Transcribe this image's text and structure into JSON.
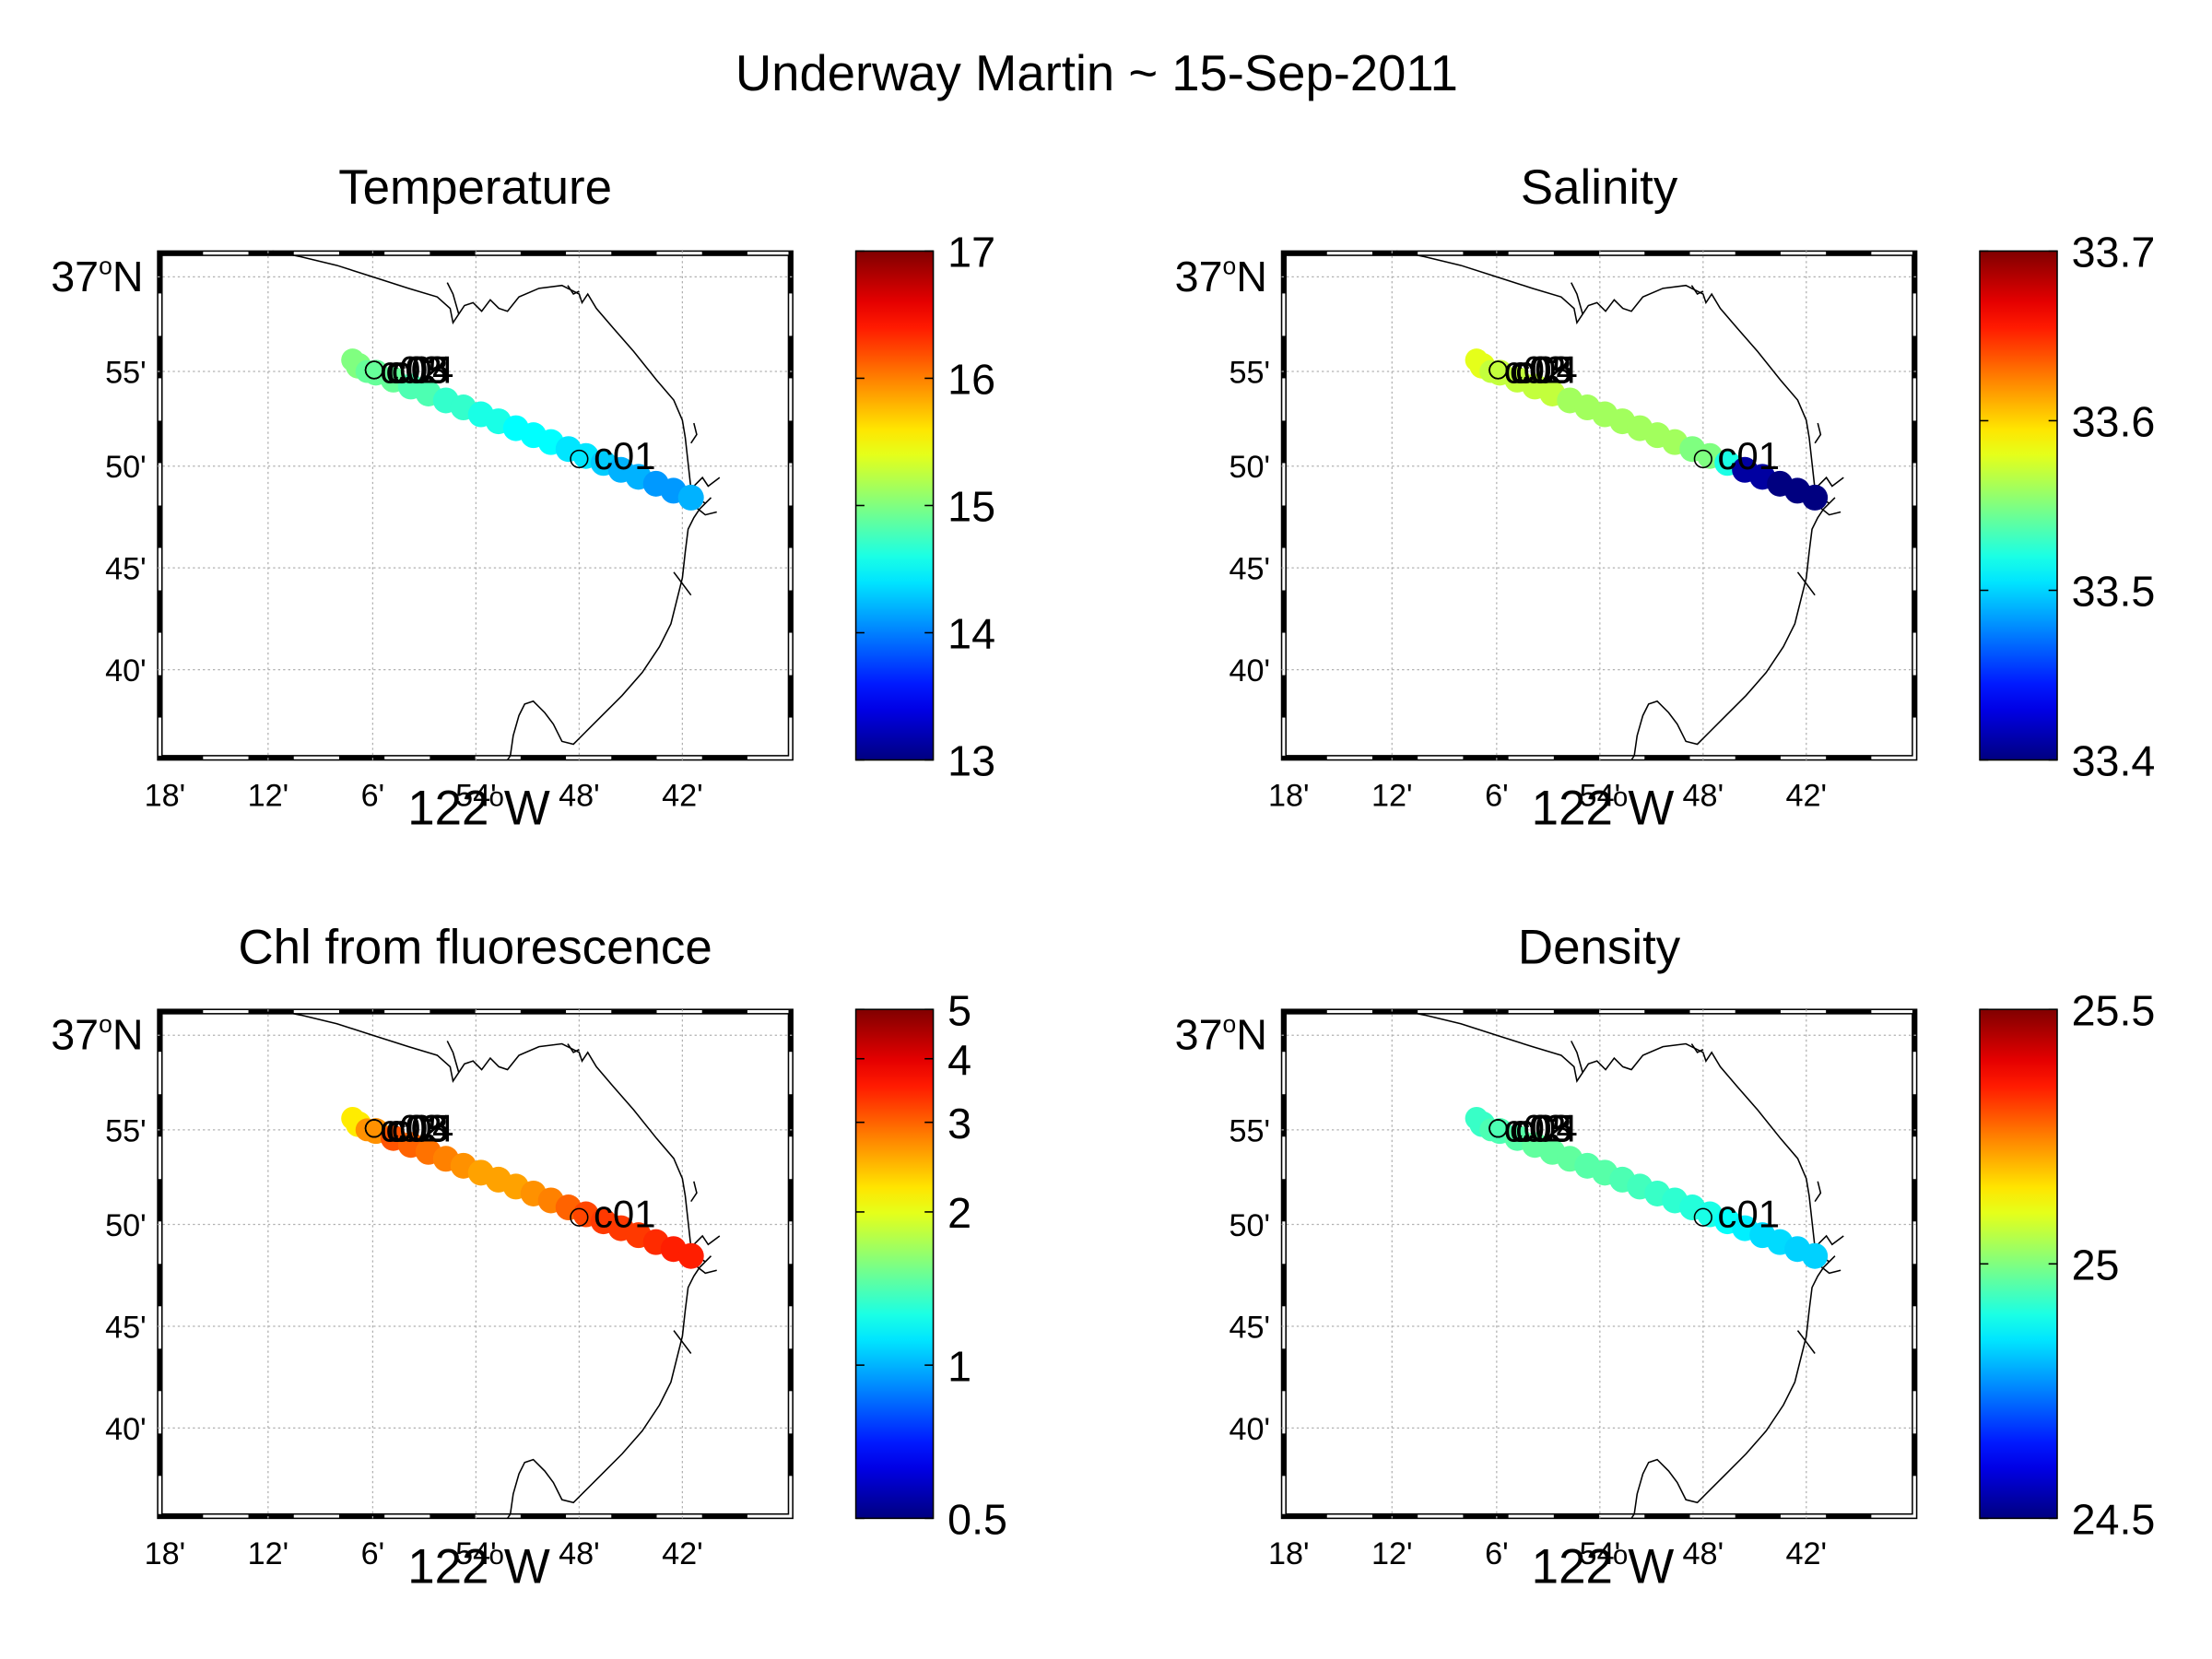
{
  "figure": {
    "title": "Underway Martin ~ 15-Sep-2011"
  },
  "shared_axes": {
    "lon_ticks": [
      "18'",
      "12'",
      "6'",
      "54'",
      "48'",
      "42'"
    ],
    "lon_degree_label": "122",
    "lon_degree_suffix": "W",
    "lat_degree_label": "37",
    "lat_degree_suffix": "N",
    "lat_ticks": [
      "55'",
      "50'",
      "45'",
      "40'"
    ]
  },
  "chart_data": [
    {
      "type": "scatter",
      "title": "Temperature",
      "colorbar": {
        "scale": "linear",
        "range": [
          13,
          17
        ],
        "ticks": [
          "17",
          "16",
          "15",
          "14",
          "13"
        ]
      },
      "stations": [
        {
          "label": "c01"
        },
        {
          "label": "c02"
        },
        {
          "label": "c03"
        },
        {
          "label": "c04"
        },
        {
          "label": "c05"
        }
      ],
      "track_values": [
        15.0,
        14.9,
        14.9,
        14.8,
        14.8,
        14.7,
        14.7,
        14.6,
        14.6,
        14.5,
        14.5,
        14.5,
        14.4,
        14.4,
        14.3,
        14.2,
        14.2,
        14.1,
        14.1,
        14.2
      ]
    },
    {
      "type": "scatter",
      "title": "Salinity",
      "colorbar": {
        "scale": "linear",
        "range": [
          33.4,
          33.7
        ],
        "ticks": [
          "33.7",
          "33.6",
          "33.5",
          "33.4"
        ]
      },
      "stations": [
        {
          "label": "c01"
        },
        {
          "label": "c02"
        },
        {
          "label": "c03"
        },
        {
          "label": "c04"
        },
        {
          "label": "c05"
        }
      ],
      "track_values": [
        33.58,
        33.57,
        33.57,
        33.57,
        33.57,
        33.56,
        33.56,
        33.56,
        33.56,
        33.56,
        33.56,
        33.56,
        33.55,
        33.55,
        33.52,
        33.41,
        33.41,
        33.4,
        33.4,
        33.4
      ]
    },
    {
      "type": "scatter",
      "title": "Chl from fluorescence",
      "colorbar": {
        "scale": "log",
        "range": [
          0.5,
          5
        ],
        "ticks": [
          "5",
          "4",
          "3",
          "2",
          "1",
          "0.5"
        ]
      },
      "stations": [
        {
          "label": "c01"
        },
        {
          "label": "c02"
        },
        {
          "label": "c03"
        },
        {
          "label": "c04"
        },
        {
          "label": "c05"
        }
      ],
      "track_values": [
        2.2,
        2.7,
        3.1,
        3.0,
        2.9,
        2.8,
        2.7,
        2.6,
        2.6,
        2.6,
        2.7,
        2.8,
        3.0,
        3.2,
        3.3,
        3.3,
        3.3,
        3.4,
        3.5,
        3.5
      ]
    },
    {
      "type": "scatter",
      "title": "Density",
      "colorbar": {
        "scale": "linear",
        "range": [
          24.5,
          25.5
        ],
        "ticks": [
          "25.5",
          "25",
          "24.5"
        ]
      },
      "stations": [
        {
          "label": "c01"
        },
        {
          "label": "c02"
        },
        {
          "label": "c03"
        },
        {
          "label": "c04"
        },
        {
          "label": "c05"
        }
      ],
      "track_values": [
        24.93,
        24.95,
        24.96,
        24.97,
        24.97,
        24.97,
        24.96,
        24.96,
        24.95,
        24.94,
        24.93,
        24.92,
        24.91,
        24.9,
        24.88,
        24.86,
        24.84,
        24.84,
        24.83,
        24.83
      ]
    }
  ]
}
